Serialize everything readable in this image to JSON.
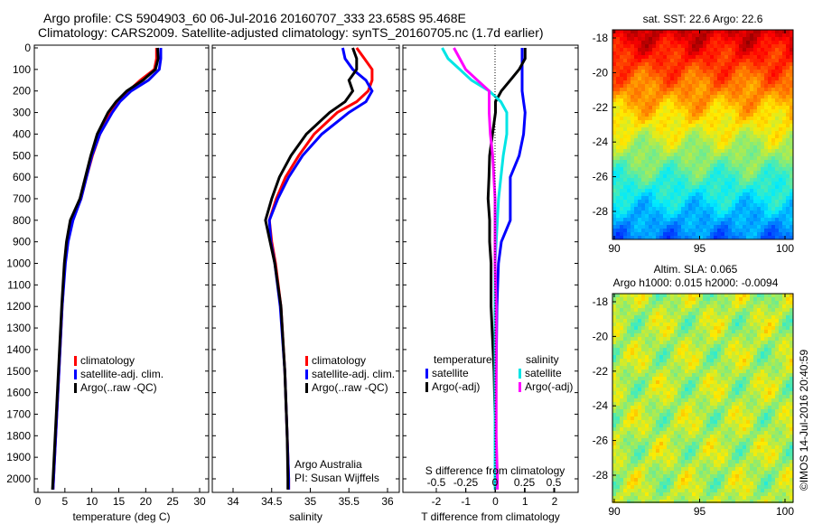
{
  "header": {
    "line1": "Argo profile: CS 5904903_60 06-Jul-2016 20160707_333 23.658S 95.468E",
    "line2": "Climatology: CARS2009. Satellite-adjusted climatology: synTS_20160705.nc (1.7d earlier)"
  },
  "credit": "©IMOS 14-Jul-2016 20:40:59",
  "colors": {
    "climatology": "#ff0000",
    "satellite": "#0000ff",
    "argo": "#000000",
    "s_satellite": "#00e5e5",
    "s_argo": "#ff00ff"
  },
  "chart_data": [
    {
      "type": "line",
      "id": "temperature",
      "xlabel": "temperature (deg C)",
      "ylabel": "depth",
      "xlim": [
        -1,
        31
      ],
      "ylim": [
        2050,
        0
      ],
      "xticks": [
        "0",
        "5",
        "10",
        "15",
        "20",
        "25",
        "30"
      ],
      "xtick_values": [
        0,
        5,
        10,
        15,
        20,
        25,
        30
      ],
      "yticks": [
        "0",
        "100",
        "200",
        "300",
        "400",
        "500",
        "600",
        "700",
        "800",
        "900",
        "1000",
        "1100",
        "1200",
        "1300",
        "1400",
        "1500",
        "1600",
        "1700",
        "1800",
        "1900",
        "2000"
      ],
      "depth": [
        0,
        50,
        100,
        150,
        200,
        250,
        300,
        400,
        500,
        600,
        700,
        800,
        900,
        1000,
        1200,
        1500,
        1800,
        2000,
        2050
      ],
      "legend": [
        "climatology",
        "satellite-adj. clim.",
        "Argo(..raw -QC)"
      ],
      "series": [
        {
          "name": "climatology",
          "color": "#ff0000",
          "values": [
            22.0,
            22.0,
            21.6,
            19.0,
            16.8,
            15.0,
            13.5,
            11.5,
            10.1,
            9.0,
            8.0,
            6.4,
            5.5,
            5.0,
            4.5,
            3.9,
            3.3,
            2.9,
            2.8
          ]
        },
        {
          "name": "satellite-adj. clim.",
          "color": "#0000ff",
          "values": [
            22.8,
            22.8,
            22.5,
            20.5,
            17.3,
            15.2,
            13.8,
            11.5,
            10.0,
            9.0,
            8.0,
            6.5,
            5.6,
            5.1,
            4.5,
            3.9,
            3.3,
            2.9,
            2.8
          ]
        },
        {
          "name": "Argo(..raw -QC)",
          "color": "#000000",
          "values": [
            22.2,
            22.3,
            21.8,
            19.5,
            16.5,
            14.5,
            13.0,
            11.0,
            9.8,
            8.8,
            7.8,
            6.0,
            5.3,
            4.9,
            4.4,
            3.8,
            3.2,
            2.8,
            2.7
          ]
        }
      ]
    },
    {
      "type": "line",
      "id": "salinity",
      "xlabel": "salinity",
      "xlim": [
        33.8,
        36.1
      ],
      "ylim": [
        2050,
        0
      ],
      "xticks": [
        "34",
        "34.5",
        "35",
        "35.5",
        "36"
      ],
      "xtick_values": [
        34,
        34.5,
        35,
        35.5,
        36
      ],
      "depth": [
        0,
        50,
        100,
        150,
        200,
        250,
        300,
        400,
        500,
        600,
        700,
        800,
        900,
        1000,
        1200,
        1500,
        1800,
        2000,
        2050
      ],
      "legend": [
        "climatology",
        "satellite-adj. clim.",
        "Argo(..raw -QC)"
      ],
      "annotation": [
        "Argo Australia",
        "PI: Susan Wijffels"
      ],
      "series": [
        {
          "name": "climatology",
          "color": "#ff0000",
          "values": [
            35.6,
            35.7,
            35.8,
            35.8,
            35.75,
            35.6,
            35.35,
            35.05,
            34.85,
            34.68,
            34.56,
            34.47,
            34.5,
            34.55,
            34.62,
            34.67,
            34.7,
            34.72,
            34.72
          ]
        },
        {
          "name": "satellite-adj. clim.",
          "color": "#0000ff",
          "values": [
            35.42,
            35.45,
            35.55,
            35.72,
            35.8,
            35.72,
            35.5,
            35.15,
            34.9,
            34.72,
            34.58,
            34.47,
            34.49,
            34.54,
            34.61,
            34.67,
            34.7,
            34.72,
            34.72
          ]
        },
        {
          "name": "Argo(..raw -QC)",
          "color": "#000000",
          "values": [
            35.55,
            35.6,
            35.6,
            35.5,
            35.55,
            35.45,
            35.25,
            34.95,
            34.75,
            34.6,
            34.5,
            34.42,
            34.48,
            34.54,
            34.62,
            34.67,
            34.7,
            34.71,
            34.71
          ]
        }
      ]
    },
    {
      "type": "line",
      "id": "difference",
      "xlabel": "T difference from climatology",
      "x2label": "S difference from climatology",
      "xlim": [
        -3,
        3
      ],
      "xticks": [
        "-2",
        "-1",
        "0",
        "1",
        "2"
      ],
      "xtick_values": [
        -2,
        -1,
        0,
        1,
        2
      ],
      "x2ticks": [
        "-0.5",
        "-0.25",
        "0",
        "0.25",
        "0.5"
      ],
      "x2tick_values": [
        -0.5,
        -0.25,
        0,
        0.25,
        0.5
      ],
      "depth": [
        0,
        50,
        100,
        150,
        200,
        250,
        300,
        400,
        500,
        600,
        700,
        800,
        900,
        1000,
        1200,
        1500,
        1800,
        2000,
        2050
      ],
      "legend_titles": [
        "temperature",
        "salinity"
      ],
      "legend": [
        "satellite",
        "Argo(-adj)",
        "satellite",
        "Argo(-adj)"
      ],
      "series": [
        {
          "name": "T satellite",
          "axis": "T",
          "color": "#0000ff",
          "values": [
            0.9,
            0.9,
            0.9,
            0.9,
            0.9,
            0.95,
            1.0,
            0.95,
            0.8,
            0.5,
            0.5,
            0.5,
            0.2,
            0.1,
            0.05,
            0.02,
            0.0,
            0.0,
            0.0
          ]
        },
        {
          "name": "T Argo(-adj)",
          "axis": "T",
          "color": "#000000",
          "values": [
            1.0,
            1.0,
            0.8,
            0.5,
            0.2,
            0.0,
            0.0,
            -0.1,
            -0.2,
            -0.22,
            -0.25,
            -0.2,
            -0.2,
            -0.15,
            -0.15,
            -0.05,
            0.0,
            0.0,
            0.0
          ]
        },
        {
          "name": "S satellite",
          "axis": "S",
          "color": "#00e5e5",
          "values": [
            -0.45,
            -0.4,
            -0.3,
            -0.2,
            -0.05,
            0.05,
            0.1,
            0.1,
            0.07,
            0.05,
            0.03,
            0.02,
            0.01,
            0.0,
            0.0,
            0.0,
            0.0,
            0.0,
            0.0
          ]
        },
        {
          "name": "S Argo(-adj)",
          "axis": "S",
          "color": "#ff00ff",
          "values": [
            -0.35,
            -0.3,
            -0.25,
            -0.15,
            -0.05,
            -0.05,
            -0.05,
            -0.04,
            -0.02,
            -0.01,
            0.0,
            0.0,
            0.0,
            0.0,
            0.01,
            0.01,
            0.01,
            0.02,
            0.02
          ]
        }
      ]
    },
    {
      "type": "heatmap",
      "id": "sst_map",
      "title": "sat. SST: 22.6 Argo: 22.6",
      "xticks": [
        "90",
        "95",
        "100"
      ],
      "xtick_values": [
        90,
        95,
        100
      ],
      "yticks": [
        "-18",
        "-20",
        "-22",
        "-24",
        "-26",
        "-28"
      ],
      "ytick_values": [
        -18,
        -20,
        -22,
        -24,
        -26,
        -28
      ],
      "xlim": [
        90,
        100.5
      ],
      "ylim": [
        -29.6,
        -17.5
      ]
    },
    {
      "type": "heatmap",
      "id": "sla_map",
      "title": "Altim. SLA: 0.065",
      "subtitle": "Argo h1000: 0.015 h2000: -0.0094",
      "xticks": [
        "90",
        "95",
        "100"
      ],
      "xtick_values": [
        90,
        95,
        100
      ],
      "yticks": [
        "-18",
        "-20",
        "-22",
        "-24",
        "-26",
        "-28"
      ],
      "ytick_values": [
        -18,
        -20,
        -22,
        -24,
        -26,
        -28
      ],
      "xlim": [
        90,
        100.5
      ],
      "ylim": [
        -29.6,
        -17.5
      ]
    }
  ]
}
